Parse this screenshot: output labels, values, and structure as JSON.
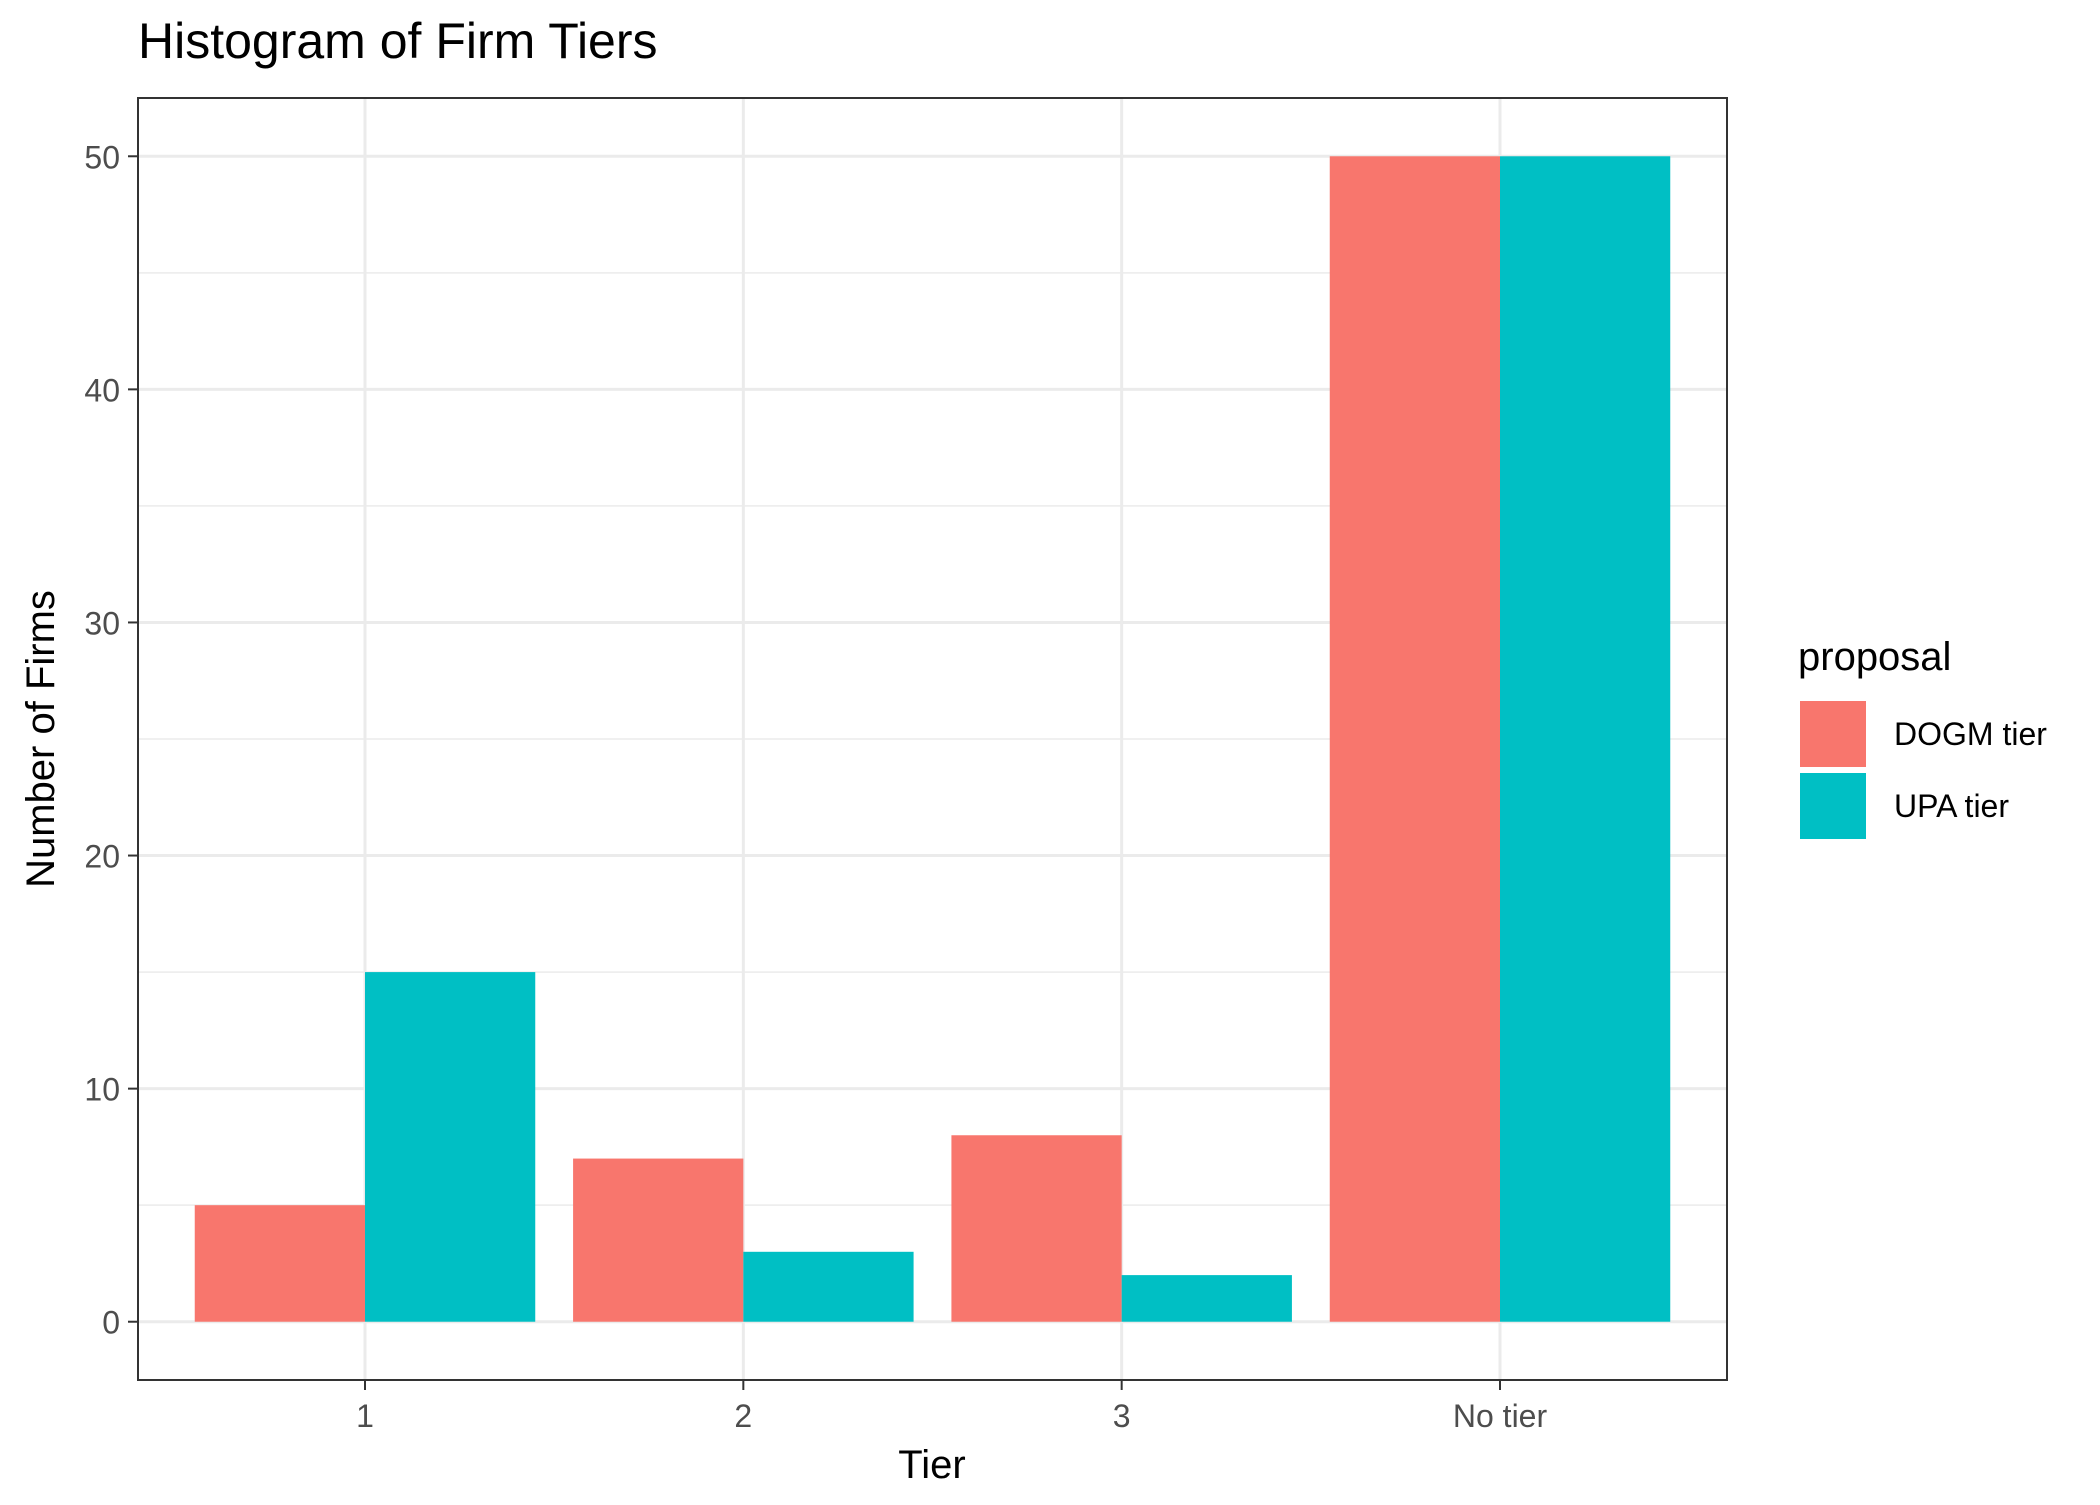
{
  "chart_data": {
    "type": "bar",
    "title": "Histogram of Firm Tiers",
    "xlabel": "Tier",
    "ylabel": "Number of Firms",
    "categories": [
      "1",
      "2",
      "3",
      "No tier"
    ],
    "series": [
      {
        "name": "DOGM tier",
        "color": "#F8766D",
        "values": [
          5,
          7,
          8,
          50
        ]
      },
      {
        "name": "UPA tier",
        "color": "#00BFC4",
        "values": [
          15,
          3,
          2,
          50
        ]
      }
    ],
    "ylim": [
      -2.5,
      52.5
    ],
    "yticks": [
      0,
      10,
      20,
      30,
      40,
      50
    ],
    "grid": true,
    "legend": {
      "title": "proposal",
      "placement": "right"
    }
  }
}
